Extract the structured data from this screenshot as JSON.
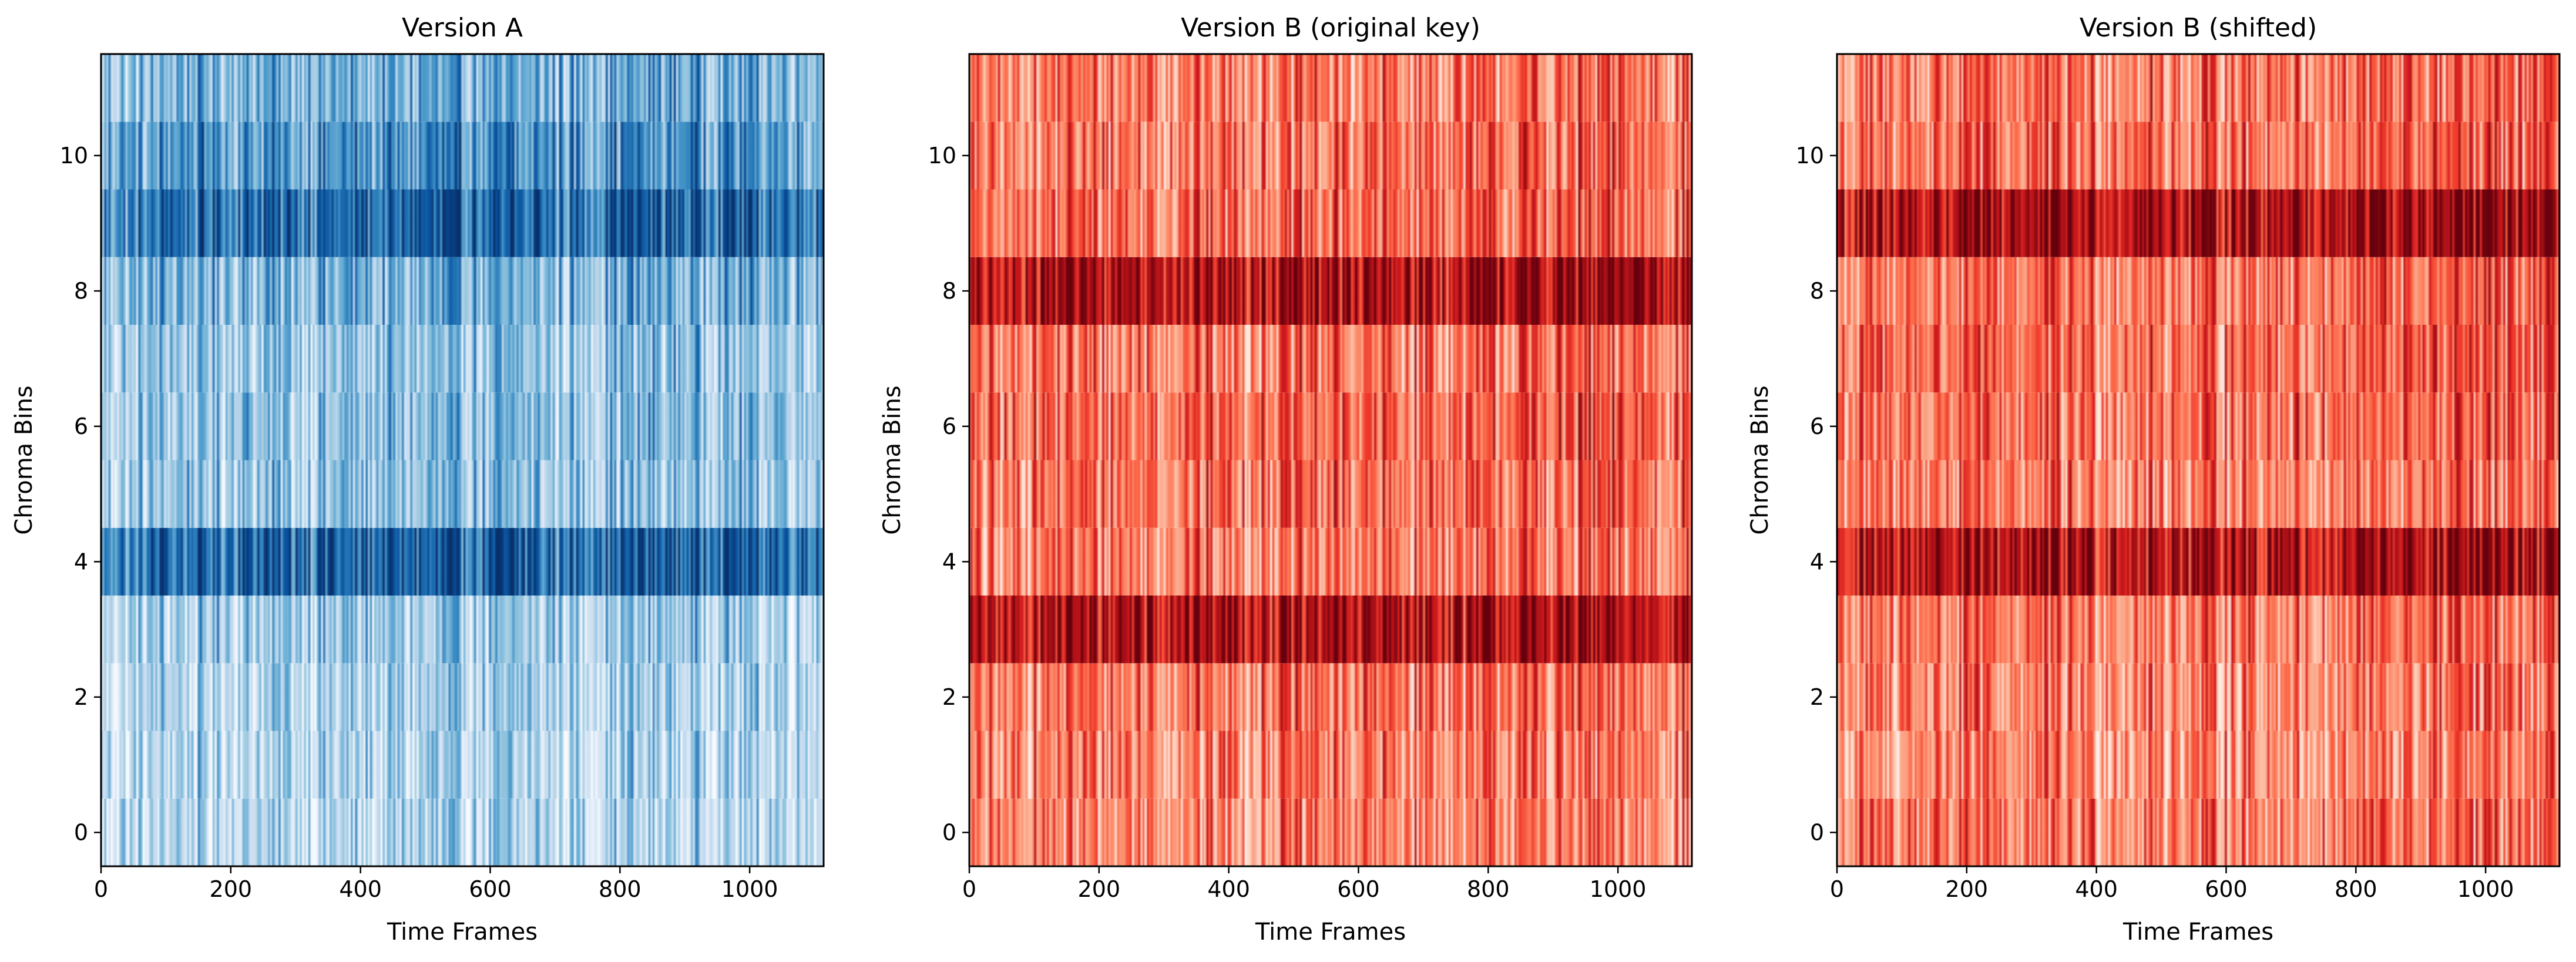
{
  "chart_data": [
    {
      "type": "heatmap",
      "title": "Version A",
      "xlabel": "Time Frames",
      "ylabel": "Chroma Bins",
      "xlim": [
        0,
        1114
      ],
      "ylim": [
        -0.5,
        11.5
      ],
      "xticks": [
        0,
        200,
        400,
        600,
        800,
        1000
      ],
      "yticks": [
        0,
        2,
        4,
        6,
        8,
        10
      ],
      "n_bins": 12,
      "n_frames": 1114,
      "colormap": [
        "#f7fbff",
        "#deebf7",
        "#c6dbef",
        "#9ecae1",
        "#6baed6",
        "#4292c6",
        "#2171b5",
        "#08519c",
        "#08306b"
      ],
      "bin_profile": [
        0.28,
        0.3,
        0.33,
        0.36,
        0.82,
        0.4,
        0.42,
        0.4,
        0.48,
        0.8,
        0.62,
        0.5
      ],
      "energy_segments": [
        {
          "x": [
            0,
            80
          ],
          "level": 0.45
        },
        {
          "x": [
            80,
            700
          ],
          "level": 0.7
        },
        {
          "x": [
            700,
            760
          ],
          "level": 0.55
        },
        {
          "x": [
            760,
            1000
          ],
          "level": 0.8
        },
        {
          "x": [
            1000,
            1114
          ],
          "level": 0.7
        }
      ],
      "grid": false
    },
    {
      "type": "heatmap",
      "title": "Version B (original key)",
      "xlabel": "Time Frames",
      "ylabel": "Chroma Bins",
      "xlim": [
        0,
        1114
      ],
      "ylim": [
        -0.5,
        11.5
      ],
      "xticks": [
        0,
        200,
        400,
        600,
        800,
        1000
      ],
      "yticks": [
        0,
        2,
        4,
        6,
        8,
        10
      ],
      "n_bins": 12,
      "n_frames": 1114,
      "colormap": [
        "#fff5f0",
        "#fee0d2",
        "#fcbba1",
        "#fc9272",
        "#fb6a4a",
        "#ef3b2c",
        "#cb181d",
        "#a50f15",
        "#67000d"
      ],
      "bin_profile": [
        0.42,
        0.44,
        0.48,
        0.86,
        0.45,
        0.5,
        0.52,
        0.48,
        0.88,
        0.5,
        0.48,
        0.46
      ],
      "energy_segments": [
        {
          "x": [
            0,
            80
          ],
          "level": 0.5
        },
        {
          "x": [
            80,
            730
          ],
          "level": 0.7
        },
        {
          "x": [
            730,
            790
          ],
          "level": 0.6
        },
        {
          "x": [
            790,
            1114
          ],
          "level": 0.75
        }
      ],
      "grid": false
    },
    {
      "type": "heatmap",
      "title": "Version B (shifted)",
      "xlabel": "Time Frames",
      "ylabel": "Chroma Bins",
      "xlim": [
        0,
        1114
      ],
      "ylim": [
        -0.5,
        11.5
      ],
      "xticks": [
        0,
        200,
        400,
        600,
        800,
        1000
      ],
      "yticks": [
        0,
        2,
        4,
        6,
        8,
        10
      ],
      "n_bins": 12,
      "n_frames": 1114,
      "colormap": [
        "#fff5f0",
        "#fee0d2",
        "#fcbba1",
        "#fc9272",
        "#fb6a4a",
        "#ef3b2c",
        "#cb181d",
        "#a50f15",
        "#67000d"
      ],
      "bin_profile": [
        0.46,
        0.42,
        0.44,
        0.48,
        0.86,
        0.45,
        0.5,
        0.52,
        0.48,
        0.88,
        0.5,
        0.48
      ],
      "energy_segments": [
        {
          "x": [
            0,
            80
          ],
          "level": 0.5
        },
        {
          "x": [
            80,
            730
          ],
          "level": 0.7
        },
        {
          "x": [
            730,
            790
          ],
          "level": 0.6
        },
        {
          "x": [
            790,
            1114
          ],
          "level": 0.75
        }
      ],
      "grid": false
    }
  ]
}
